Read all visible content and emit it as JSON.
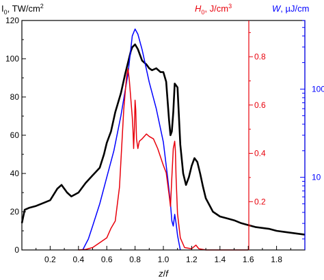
{
  "chart_data": {
    "type": "line",
    "xlabel_main": "z",
    "xlabel_sep": "/",
    "xlabel_den": "f",
    "xlim": [
      0.0,
      2.0
    ],
    "xticks": [
      "0.2",
      "0.4",
      "0.6",
      "0.8",
      "1.0",
      "1.2",
      "1.4",
      "1.6",
      "1.8"
    ],
    "xtick_values": [
      0.2,
      0.4,
      0.6,
      0.8,
      1.0,
      1.2,
      1.4,
      1.6,
      1.8
    ],
    "axes": {
      "left": {
        "label_main": "I",
        "label_sub": "0",
        "label_rest": ", TW/cm",
        "label_sup": "2",
        "color": "#000000",
        "lim": [
          0,
          120
        ],
        "ticks": [
          "0",
          "20",
          "40",
          "60",
          "80",
          "100",
          "120"
        ],
        "tick_values": [
          0,
          20,
          40,
          60,
          80,
          100,
          120
        ]
      },
      "right_red": {
        "label_main": "H",
        "label_sub": "0",
        "label_rest": ", J/cm",
        "label_sup": "3",
        "color": "#e8000b",
        "lim": [
          0.0,
          0.95
        ],
        "ticks": [
          "0.2",
          "0.4",
          "0.6",
          "0.8"
        ],
        "tick_values": [
          0.2,
          0.4,
          0.6,
          0.8
        ]
      },
      "right_blue": {
        "label_main": "W",
        "label_rest": ", µJ/cm",
        "color": "#0000ff",
        "scale": "log",
        "lim": [
          1.5,
          600
        ],
        "ticks": [
          "10",
          "100"
        ],
        "tick_values": [
          10,
          100
        ]
      }
    },
    "series": [
      {
        "axis": "left",
        "color": "#000000",
        "x": [
          0.0,
          0.02,
          0.05,
          0.1,
          0.15,
          0.2,
          0.25,
          0.28,
          0.32,
          0.35,
          0.4,
          0.45,
          0.5,
          0.55,
          0.58,
          0.6,
          0.63,
          0.66,
          0.7,
          0.73,
          0.75,
          0.77,
          0.78,
          0.8,
          0.82,
          0.85,
          0.88,
          0.9,
          0.92,
          0.95,
          0.98,
          1.0,
          1.02,
          1.04,
          1.05,
          1.06,
          1.07,
          1.08,
          1.1,
          1.12,
          1.14,
          1.16,
          1.18,
          1.2,
          1.22,
          1.24,
          1.26,
          1.28,
          1.3,
          1.35,
          1.4,
          1.45,
          1.5,
          1.55,
          1.6,
          1.65,
          1.7,
          1.75,
          1.8,
          1.85,
          1.9,
          1.95,
          2.0
        ],
        "y": [
          14,
          21,
          22,
          23,
          24.5,
          26,
          32,
          34,
          30,
          28,
          30,
          35,
          39,
          43,
          50,
          56,
          62,
          72,
          82,
          92,
          98,
          104,
          106,
          107.5,
          105,
          99,
          97,
          95,
          94,
          95,
          93,
          93,
          88,
          68,
          60,
          62,
          72,
          87,
          85,
          55,
          40,
          34,
          38,
          44,
          48,
          46,
          40,
          33,
          27,
          20,
          17.5,
          16.5,
          15.5,
          14,
          13,
          12,
          11.5,
          11,
          10,
          9.5,
          9,
          8.5,
          8
        ]
      },
      {
        "axis": "right_red",
        "color": "#e8000b",
        "x": [
          0.4,
          0.45,
          0.5,
          0.55,
          0.6,
          0.63,
          0.66,
          0.69,
          0.72,
          0.74,
          0.75,
          0.76,
          0.78,
          0.785,
          0.79,
          0.795,
          0.8,
          0.805,
          0.81,
          0.82,
          0.83,
          0.85,
          0.88,
          0.9,
          0.93,
          0.96,
          1.0,
          1.02,
          1.04,
          1.05,
          1.06,
          1.07,
          1.08,
          1.085,
          1.09,
          1.1,
          1.12,
          1.15,
          1.2,
          1.23,
          1.25,
          1.3,
          1.4,
          1.6
        ],
        "y": [
          0.0,
          0.002,
          0.01,
          0.03,
          0.05,
          0.09,
          0.12,
          0.26,
          0.58,
          0.72,
          0.75,
          0.7,
          0.55,
          0.5,
          0.42,
          0.5,
          0.62,
          0.58,
          0.46,
          0.42,
          0.45,
          0.46,
          0.48,
          0.47,
          0.46,
          0.42,
          0.35,
          0.32,
          0.23,
          0.18,
          0.3,
          0.42,
          0.45,
          0.41,
          0.3,
          0.15,
          0.05,
          0.01,
          0.005,
          0.02,
          0.005,
          0.0,
          0.0,
          0.0
        ]
      },
      {
        "axis": "right_blue",
        "color": "#0000ff",
        "x": [
          0.43,
          0.47,
          0.5,
          0.55,
          0.6,
          0.65,
          0.7,
          0.75,
          0.78,
          0.8,
          0.82,
          0.85,
          0.9,
          0.95,
          1.0,
          1.03,
          1.05,
          1.06,
          1.07,
          1.08,
          1.09,
          1.1,
          1.11,
          1.12
        ],
        "y": [
          1.5,
          2.0,
          2.8,
          5,
          10,
          20,
          50,
          150,
          400,
          480,
          420,
          280,
          120,
          60,
          25,
          10,
          5,
          3.2,
          2.8,
          3.8,
          3.0,
          2.2,
          1.8,
          1.5
        ]
      }
    ]
  }
}
